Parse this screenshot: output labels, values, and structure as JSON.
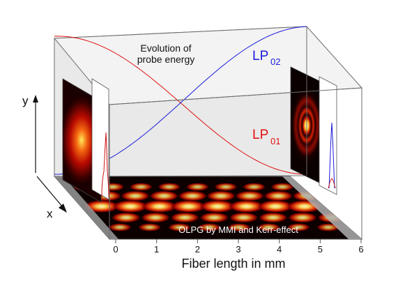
{
  "annotation": {
    "line1": "Evolution of",
    "line2": "probe energy"
  },
  "modes": {
    "lp02": {
      "base": "LP",
      "sub": "02",
      "color": "#1a1adb"
    },
    "lp01": {
      "base": "LP",
      "sub": "01",
      "color": "#e01010"
    }
  },
  "axes": {
    "y": "y",
    "x": "x",
    "fiber_axis_title": "Fiber length in mm",
    "fiber_ticks": [
      "0",
      "1",
      "2",
      "3",
      "4",
      "5",
      "6"
    ]
  },
  "floor_caption": "OLPG by MMI and Kerr-effect",
  "colors": {
    "box_edge": "#555555",
    "panel_fill": "#e4e4e4",
    "heat_bright": "#fff3a0",
    "heat_mid": "#e02000",
    "heat_dark": "#1a0000"
  }
}
